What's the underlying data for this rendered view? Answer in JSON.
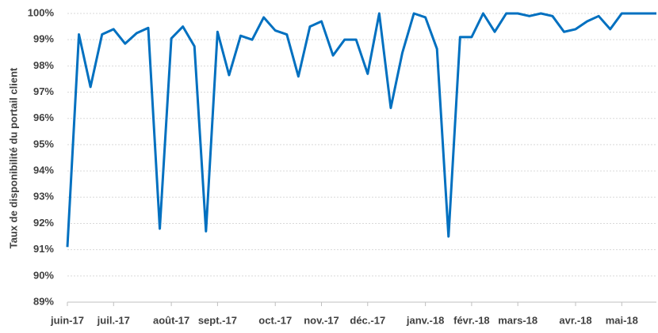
{
  "chart_data": {
    "type": "line",
    "y_label": "Taux de disponibilité du portail client",
    "categories": [
      "juin-17",
      null,
      null,
      null,
      "juil.-17",
      null,
      null,
      null,
      null,
      "août-17",
      null,
      null,
      null,
      "sept.-17",
      null,
      null,
      null,
      null,
      "oct.-17",
      null,
      null,
      null,
      "nov.-17",
      null,
      null,
      null,
      "déc.-17",
      null,
      null,
      null,
      null,
      "janv.-18",
      null,
      null,
      null,
      "févr.-18",
      null,
      null,
      null,
      "mars-18",
      null,
      null,
      null,
      null,
      "avr.-18",
      null,
      null,
      null,
      "mai-18",
      null,
      null,
      null
    ],
    "series": [
      {
        "name": "Taux de disponibilité",
        "color": "#0070c0",
        "values": [
          91.1,
          99.2,
          97.2,
          99.2,
          99.4,
          98.85,
          99.25,
          99.45,
          91.8,
          99.05,
          99.5,
          98.75,
          91.7,
          99.3,
          97.65,
          99.15,
          99.0,
          99.85,
          99.35,
          99.2,
          97.6,
          99.5,
          99.7,
          98.4,
          99.0,
          99.0,
          97.7,
          100.0,
          96.4,
          98.5,
          100.0,
          99.85,
          98.65,
          91.5,
          99.1,
          99.1,
          100.0,
          99.3,
          100.0,
          100.0,
          99.9,
          100.0,
          99.9,
          99.3,
          99.4,
          99.7,
          99.9,
          99.4,
          100.0,
          100.0,
          100.0,
          100.0
        ]
      }
    ],
    "ylim": [
      89,
      100
    ],
    "yticks": [
      {
        "value": 89,
        "label": "89%"
      },
      {
        "value": 90,
        "label": "90%"
      },
      {
        "value": 91,
        "label": "91%"
      },
      {
        "value": 92,
        "label": "92%"
      },
      {
        "value": 93,
        "label": "93%"
      },
      {
        "value": 94,
        "label": "94%"
      },
      {
        "value": 95,
        "label": "95%"
      },
      {
        "value": 96,
        "label": "96%"
      },
      {
        "value": 97,
        "label": "97%"
      },
      {
        "value": 98,
        "label": "98%"
      },
      {
        "value": 99,
        "label": "99%"
      },
      {
        "value": 100,
        "label": "100%"
      }
    ],
    "grid": true
  }
}
